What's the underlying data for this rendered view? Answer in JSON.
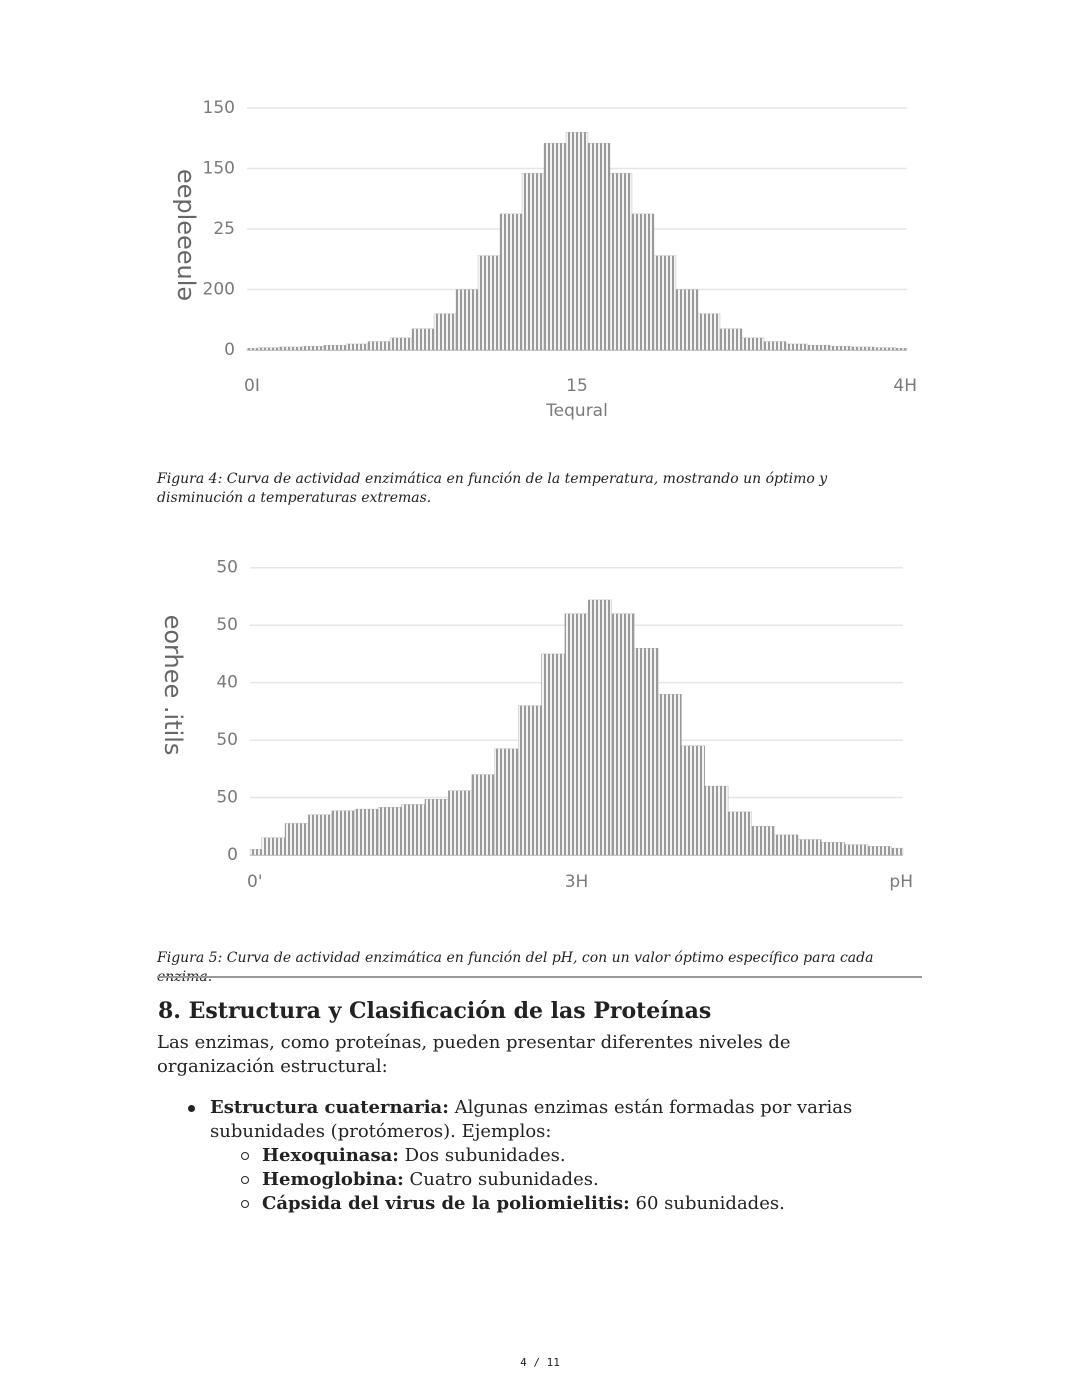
{
  "chart_data": [
    {
      "type": "bar",
      "ylabel": "eepleeeulə",
      "xlabel": "Tequral",
      "x": [
        0,
        1,
        2,
        3,
        4,
        5,
        6,
        7,
        8,
        9,
        10,
        11,
        12,
        13,
        14,
        15,
        16,
        17,
        18,
        19,
        20,
        21,
        22,
        23,
        24,
        25,
        26,
        27,
        28,
        29,
        30
      ],
      "values": [
        0.03,
        0.04,
        0.05,
        0.06,
        0.08,
        0.1,
        0.14,
        0.2,
        0.35,
        0.6,
        1.0,
        1.56,
        2.25,
        2.92,
        3.42,
        3.6,
        3.42,
        2.92,
        2.25,
        1.56,
        1.0,
        0.6,
        0.35,
        0.2,
        0.14,
        0.1,
        0.08,
        0.06,
        0.05,
        0.04,
        0.03
      ],
      "xlim": [
        0,
        30
      ],
      "xticks": [
        {
          "value": 0,
          "label": "0I"
        },
        15,
        {
          "value": 30,
          "label": "4H"
        }
      ],
      "ylim": [
        0,
        4.1
      ],
      "yticks": [
        0,
        {
          "value": 1,
          "label": "200"
        },
        {
          "value": 2,
          "label": "25"
        },
        {
          "value": 3,
          "label": "150"
        },
        {
          "value": 4,
          "label": "150"
        }
      ],
      "grid": true,
      "color": "#9a9a9a"
    },
    {
      "type": "bar",
      "ylabel": "eorhee .itils",
      "x": [
        0,
        0.5,
        1,
        1.5,
        2,
        2.5,
        3,
        3.5,
        4,
        4.5,
        5,
        5.5,
        6,
        6.5,
        7,
        7.5,
        8,
        8.5,
        9,
        9.5,
        10,
        10.5,
        11,
        11.5,
        12,
        12.5,
        13,
        13.5,
        14
      ],
      "values": [
        0.1,
        0.3,
        0.55,
        0.7,
        0.77,
        0.8,
        0.83,
        0.88,
        0.97,
        1.12,
        1.4,
        1.85,
        2.6,
        3.5,
        4.2,
        4.44,
        4.2,
        3.6,
        2.8,
        1.9,
        1.2,
        0.75,
        0.5,
        0.35,
        0.27,
        0.22,
        0.18,
        0.15,
        0.12
      ],
      "xlim": [
        0,
        14
      ],
      "xticks": [
        {
          "value": 0,
          "label": "0'"
        },
        {
          "value": 7,
          "label": "3H"
        },
        {
          "value": 14,
          "label": "pH"
        }
      ],
      "ylim": [
        0,
        5.1
      ],
      "yticks": [
        0,
        {
          "value": 1,
          "label": "50"
        },
        {
          "value": 2,
          "label": "50"
        },
        {
          "value": 3,
          "label": "40"
        },
        {
          "value": 4,
          "label": "50"
        },
        {
          "value": 5,
          "label": "50"
        }
      ],
      "grid": true,
      "color": "#9a9a9a"
    }
  ],
  "captions": [
    "Figura 4: Curva de actividad enzimática en función de la temperatura, mostrando un óptimo y disminución a temperaturas extremas.",
    "Figura 5: Curva de actividad enzimática en función del pH, con un valor óptimo específico para cada enzima."
  ],
  "section": {
    "heading": "8. Estructura y Clasificación de las Proteínas",
    "intro": "Las enzimas, como proteínas, pueden presentar diferentes niveles de organización estructural:",
    "bullet": {
      "term": "Estructura cuaternaria:",
      "text": "Algunas enzimas están formadas por varias subunidades (protómeros). Ejemplos:",
      "items": [
        {
          "term": "Hexoquinasa:",
          "text": "Dos subunidades."
        },
        {
          "term": "Hemoglobina:",
          "text": "Cuatro subunidades."
        },
        {
          "term": "Cápsida del virus de la poliomielitis:",
          "text": "60 subunidades."
        }
      ]
    }
  },
  "footer": "4 / 11"
}
